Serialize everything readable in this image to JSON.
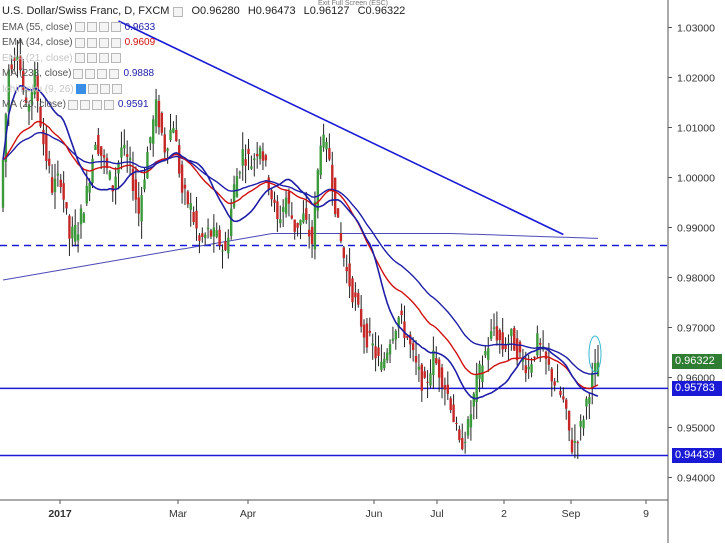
{
  "header": {
    "symbol": "U.S. Dollar/Swiss Franc, D, FXCM",
    "ohlc": {
      "open": "O0.96280",
      "high": "H0.96473",
      "low": "L0.96127",
      "close": "C0.96322"
    },
    "exit_fullscreen": "Exit Full Screen (ESC)"
  },
  "legend": [
    {
      "label": "EMA (55, close)",
      "value": "0.9633",
      "color": "#1e1ea8",
      "faded": false,
      "active": false
    },
    {
      "label": "EMA (34, close)",
      "value": "0.9609",
      "color": "#d01010",
      "faded": false,
      "active": false
    },
    {
      "label": "EMA (21, close)",
      "value": "",
      "color": "#c4c4c4",
      "faded": true,
      "active": false
    },
    {
      "label": "MA (233, close)",
      "value": "0.9888",
      "color": "#1e1ea8",
      "faded": false,
      "active": false
    },
    {
      "label": "Ichimoku (9, 26)",
      "value": "",
      "color": "#c4c4c4",
      "faded": true,
      "active": true
    },
    {
      "label": "MA (20, close)",
      "value": "0.9591",
      "color": "#1e1ea8",
      "faded": false,
      "active": false
    }
  ],
  "chart_data": {
    "type": "candlestick",
    "ylim": [
      0.9355,
      1.0355
    ],
    "y_ticks": [
      "1.03000",
      "1.02000",
      "1.01000",
      "1.00000",
      "0.99000",
      "0.98000",
      "0.97000",
      "0.96000",
      "0.95000",
      "0.94000"
    ],
    "x_ticks": [
      "2017",
      "Mar",
      "Apr",
      "Jun",
      "Jul",
      "2",
      "Sep",
      "9"
    ],
    "price_tags": [
      {
        "value": 0.96322,
        "label": "0.96322",
        "color": "#2e7d32"
      },
      {
        "value": 0.95783,
        "label": "0.95783",
        "color": "#1a1ad6"
      },
      {
        "value": 0.94439,
        "label": "0.94439",
        "color": "#1a1ad6"
      }
    ],
    "h_levels": [
      {
        "value": 0.9864,
        "style": "dashed",
        "color": "#1a1ad6"
      },
      {
        "value": 0.95783,
        "style": "solid",
        "color": "#1a1ad6"
      },
      {
        "value": 0.94439,
        "style": "solid",
        "color": "#1a1ad6"
      }
    ],
    "trendline": {
      "from": {
        "t": 40,
        "y": 1.0313
      },
      "to": {
        "t": 194,
        "y": 0.9886
      },
      "color": "#1a1ad6"
    },
    "candles_seed": [
      [
        0.994,
        1.022
      ],
      [
        1.022,
        1.026
      ],
      [
        1.026,
        1.013
      ],
      [
        1.013,
        1.02
      ],
      [
        1.02,
        1.007
      ],
      [
        1.007,
        0.998
      ],
      [
        0.998,
        1.0
      ],
      [
        1.0,
        0.988
      ],
      [
        0.988,
        0.99
      ],
      [
        0.99,
        0.997
      ],
      [
        0.997,
        1.008
      ],
      [
        1.008,
        1.003
      ],
      [
        1.003,
        0.998
      ],
      [
        0.998,
        1.006
      ],
      [
        1.006,
        1.002
      ],
      [
        1.002,
        0.993
      ],
      [
        0.993,
        1.005
      ],
      [
        1.005,
        1.014
      ],
      [
        1.014,
        1.006
      ],
      [
        1.006,
        1.011
      ],
      [
        1.011,
        0.997
      ],
      [
        0.997,
        0.994
      ],
      [
        0.994,
        0.987
      ],
      [
        0.987,
        0.989
      ],
      [
        0.989,
        0.988
      ],
      [
        0.988,
        0.985
      ],
      [
        0.985,
        0.998
      ],
      [
        0.998,
        1.005
      ],
      [
        1.005,
        1.003
      ],
      [
        1.003,
        1.007
      ],
      [
        1.007,
        0.999
      ],
      [
        0.999,
        0.991
      ],
      [
        0.991,
        0.996
      ],
      [
        0.996,
        0.99
      ],
      [
        0.99,
        0.992
      ],
      [
        0.992,
        0.987
      ],
      [
        0.987,
        1.008
      ],
      [
        1.008,
        1.004
      ],
      [
        1.004,
        0.99
      ],
      [
        0.99,
        0.981
      ],
      [
        0.981,
        0.975
      ],
      [
        0.975,
        0.969
      ],
      [
        0.969,
        0.966
      ],
      [
        0.966,
        0.962
      ],
      [
        0.962,
        0.968
      ],
      [
        0.968,
        0.972
      ],
      [
        0.972,
        0.968
      ],
      [
        0.968,
        0.962
      ],
      [
        0.962,
        0.958
      ],
      [
        0.958,
        0.964
      ],
      [
        0.964,
        0.96
      ],
      [
        0.96,
        0.955
      ],
      [
        0.955,
        0.946
      ],
      [
        0.946,
        0.95
      ],
      [
        0.95,
        0.959
      ],
      [
        0.959,
        0.965
      ],
      [
        0.965,
        0.97
      ],
      [
        0.97,
        0.966
      ],
      [
        0.966,
        0.968
      ],
      [
        0.968,
        0.964
      ],
      [
        0.964,
        0.962
      ],
      [
        0.962,
        0.967
      ],
      [
        0.967,
        0.963
      ],
      [
        0.963,
        0.959
      ],
      [
        0.959,
        0.955
      ],
      [
        0.955,
        0.946
      ],
      [
        0.946,
        0.95
      ],
      [
        0.95,
        0.958
      ],
      [
        0.958,
        0.963
      ]
    ]
  }
}
